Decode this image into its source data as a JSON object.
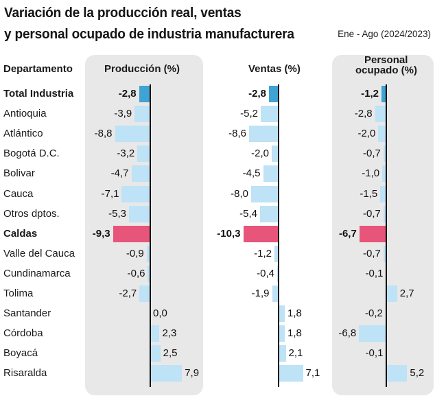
{
  "title_line1": "Variación de la producción real, ventas",
  "title_line2": "y personal ocupado de industria manufacturera",
  "period": "Ene - Ago (2024/2023)",
  "headers": {
    "department": "Departamento",
    "produccion": "Producción (%)",
    "ventas": "Ventas (%)",
    "personal_line1": "Personal",
    "personal_line2": "ocupado (%)"
  },
  "colors": {
    "normal_bar": "#bee2f6",
    "total_bar": "#3fa3d3",
    "caldas_bar": "#e8557a",
    "panel": "#e8e8e8"
  },
  "chart_data": {
    "type": "bar",
    "orientation": "horizontal",
    "categories": [
      "Total Industria",
      "Antioquia",
      "Atlántico",
      "Bogotá D.C.",
      "Bolivar",
      "Cauca",
      "Otros dptos.",
      "Caldas",
      "Valle del Cauca",
      "Cundinamarca",
      "Tolima",
      "Santander",
      "Córdoba",
      "Boyacá",
      "Risaralda"
    ],
    "bold_categories": [
      "Total Industria",
      "Caldas"
    ],
    "series": [
      {
        "name": "Producción (%)",
        "values": [
          -2.8,
          -3.9,
          -8.8,
          -3.2,
          -4.7,
          -7.1,
          -5.3,
          -9.3,
          -0.9,
          -0.6,
          -2.7,
          0.0,
          2.3,
          2.5,
          7.9
        ],
        "labels": [
          "-2,8",
          "-3,9",
          "-8,8",
          "-3,2",
          "-4,7",
          "-7,1",
          "-5,3",
          "-9,3",
          "-0,9",
          "-0,6",
          "-2,7",
          "0,0",
          "2,3",
          "2,5",
          "7,9"
        ]
      },
      {
        "name": "Ventas (%)",
        "values": [
          -2.8,
          -5.2,
          -8.6,
          -2.0,
          -4.5,
          -8.0,
          -5.4,
          -10.3,
          -1.2,
          -0.4,
          -1.9,
          1.8,
          1.8,
          2.1,
          7.1
        ],
        "labels": [
          "-2,8",
          "-5,2",
          "-8,6",
          "-2,0",
          "-4,5",
          "-8,0",
          "-5,4",
          "-10,3",
          "-1,2",
          "-0,4",
          "-1,9",
          "1,8",
          "1,8",
          "2,1",
          "7,1"
        ]
      },
      {
        "name": "Personal ocupado (%)",
        "values": [
          -1.2,
          -2.8,
          -2.0,
          -0.7,
          -1.0,
          -1.5,
          -0.7,
          -6.7,
          -0.7,
          -0.1,
          2.7,
          -0.2,
          -6.8,
          -0.1,
          5.2
        ],
        "labels": [
          "-1,2",
          "-2,8",
          "-2,0",
          "-0,7",
          "-1,0",
          "-1,5",
          "-0,7",
          "-6,7",
          "-0,7",
          "-0,1",
          "2,7",
          "-0,2",
          "-6,8",
          "-0,1",
          "5,2"
        ]
      }
    ]
  }
}
